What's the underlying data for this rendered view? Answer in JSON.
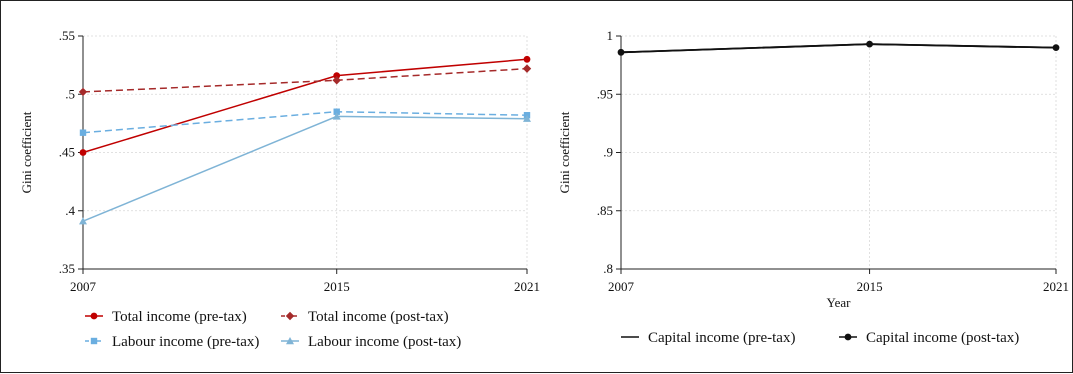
{
  "chart_data": [
    {
      "type": "line",
      "title": "",
      "xlabel": "",
      "ylabel": "Gini coefficient",
      "x": [
        2007,
        2015,
        2021
      ],
      "x_tick_labels": [
        "2007",
        "2015",
        "2021"
      ],
      "ylim": [
        0.35,
        0.55
      ],
      "y_ticks": [
        0.35,
        0.4,
        0.45,
        0.5,
        0.55
      ],
      "y_tick_labels": [
        ".35",
        ".4",
        ".45",
        ".5",
        ".55"
      ],
      "grid": true,
      "legend_position": "bottom",
      "series": [
        {
          "name": "Total income (pre-tax)",
          "values": [
            0.45,
            0.516,
            0.53
          ],
          "color": "#c00000",
          "dash": false,
          "marker": "circle"
        },
        {
          "name": "Total income (post-tax)",
          "values": [
            0.502,
            0.512,
            0.522
          ],
          "color": "#a52a2a",
          "dash": true,
          "marker": "diamond"
        },
        {
          "name": "Labour  income (pre-tax)",
          "values": [
            0.467,
            0.485,
            0.482
          ],
          "color": "#6aaee0",
          "dash": true,
          "marker": "square"
        },
        {
          "name": "Labour income (post-tax)",
          "values": [
            0.391,
            0.481,
            0.479
          ],
          "color": "#7fb4d6",
          "dash": false,
          "marker": "triangle"
        }
      ]
    },
    {
      "type": "line",
      "title": "",
      "xlabel": "Year",
      "ylabel": "Gini coefficient",
      "x": [
        2007,
        2015,
        2021
      ],
      "x_tick_labels": [
        "2007",
        "2015",
        "2021"
      ],
      "ylim": [
        0.8,
        1.0
      ],
      "y_ticks": [
        0.8,
        0.85,
        0.9,
        0.95,
        1.0
      ],
      "y_tick_labels": [
        ".8",
        ".85",
        ".9",
        ".95",
        "1"
      ],
      "grid": true,
      "legend_position": "bottom",
      "series": [
        {
          "name": "Capital  income (pre-tax)",
          "values": [
            0.986,
            0.993,
            0.99
          ],
          "color": "#111111",
          "dash": false,
          "marker": "none"
        },
        {
          "name": "Capital income (post-tax)",
          "values": [
            0.986,
            0.993,
            0.99
          ],
          "color": "#111111",
          "dash": false,
          "marker": "circle"
        }
      ]
    }
  ]
}
